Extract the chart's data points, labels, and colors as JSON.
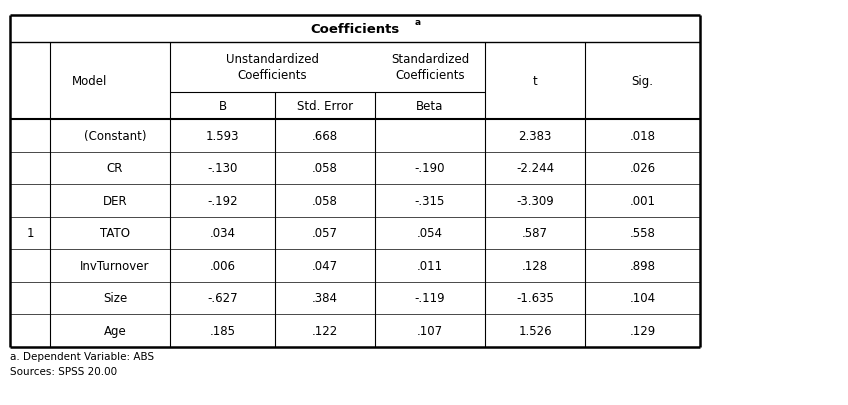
{
  "title": "Coefficients",
  "title_superscript": "a",
  "rows": [
    [
      "1",
      "(Constant)",
      "1.593",
      ".668",
      "",
      "2.383",
      ".018"
    ],
    [
      "",
      "CR",
      "-.130",
      ".058",
      "-.190",
      "-2.244",
      ".026"
    ],
    [
      "",
      "DER",
      "-.192",
      ".058",
      "-.315",
      "-3.309",
      ".001"
    ],
    [
      "",
      "TATO",
      ".034",
      ".057",
      ".054",
      ".587",
      ".558"
    ],
    [
      "",
      "InvTurnover",
      ".006",
      ".047",
      ".011",
      ".128",
      ".898"
    ],
    [
      "",
      "Size",
      "-.627",
      ".384",
      "-.119",
      "-1.635",
      ".104"
    ],
    [
      "",
      "Age",
      ".185",
      ".122",
      ".107",
      "1.526",
      ".129"
    ]
  ],
  "footnote1": "a. Dependent Variable: ABS",
  "footnote2": "Sources: SPSS 20.00",
  "background_color": "#ffffff",
  "border_color": "#000000",
  "text_color": "#000000",
  "font_size": 8.5,
  "title_font_size": 9.5
}
